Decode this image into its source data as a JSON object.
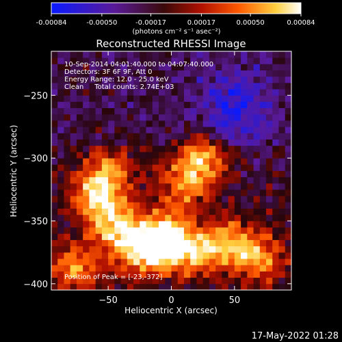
{
  "chart_data": {
    "type": "heatmap",
    "title": "Reconstructed RHESSI Image",
    "xlabel": "Heliocentric X (arcsec)",
    "ylabel": "Heliocentric Y (arcsec)",
    "xlim": [
      -95,
      95
    ],
    "ylim": [
      -405,
      -215
    ],
    "xticks": [
      -50,
      0,
      50
    ],
    "yticks": [
      -250,
      -300,
      -350,
      -400
    ],
    "colorbar": {
      "ticks": [
        "-0.00084",
        "-0.00050",
        "-0.00017",
        "0.00017",
        "0.00050",
        "0.00084"
      ],
      "range": [
        -0.00084,
        0.00084
      ],
      "unit_label": "(photons cm⁻² s⁻¹ asec⁻²)",
      "colormap": "blue-purple-red-orange-yellow-white"
    },
    "annotations": {
      "time_range": "10-Sep-2014 04:01:40.000 to 04:07:40.000",
      "detectors": "Detectors: 3F 6F 9F, Att 0",
      "energy": "Energy Range: 12.0 - 25.0 keV",
      "method": "Clean     Total counts: 2.74E+03",
      "peak": "Position of Peak = [-23,-372]"
    },
    "peak_position": [
      -23,
      -372
    ],
    "hotspots": [
      {
        "x": -23,
        "y": -372,
        "intensity": 1.0
      },
      {
        "x": -5,
        "y": -362,
        "intensity": 0.85
      },
      {
        "x": 15,
        "y": -375,
        "intensity": 0.8
      },
      {
        "x": 45,
        "y": -368,
        "intensity": 0.75
      },
      {
        "x": 70,
        "y": -380,
        "intensity": 0.7
      },
      {
        "x": -45,
        "y": -355,
        "intensity": 0.8
      },
      {
        "x": -60,
        "y": -332,
        "intensity": 0.7
      },
      {
        "x": -50,
        "y": -312,
        "intensity": 0.65
      },
      {
        "x": 25,
        "y": -300,
        "intensity": 0.8
      },
      {
        "x": 10,
        "y": -320,
        "intensity": 0.65
      },
      {
        "x": -75,
        "y": -388,
        "intensity": 0.7
      }
    ],
    "cold_region": {
      "x": 50,
      "y": -260
    }
  },
  "footer": {
    "timestamp": "17-May-2022 01:28"
  }
}
